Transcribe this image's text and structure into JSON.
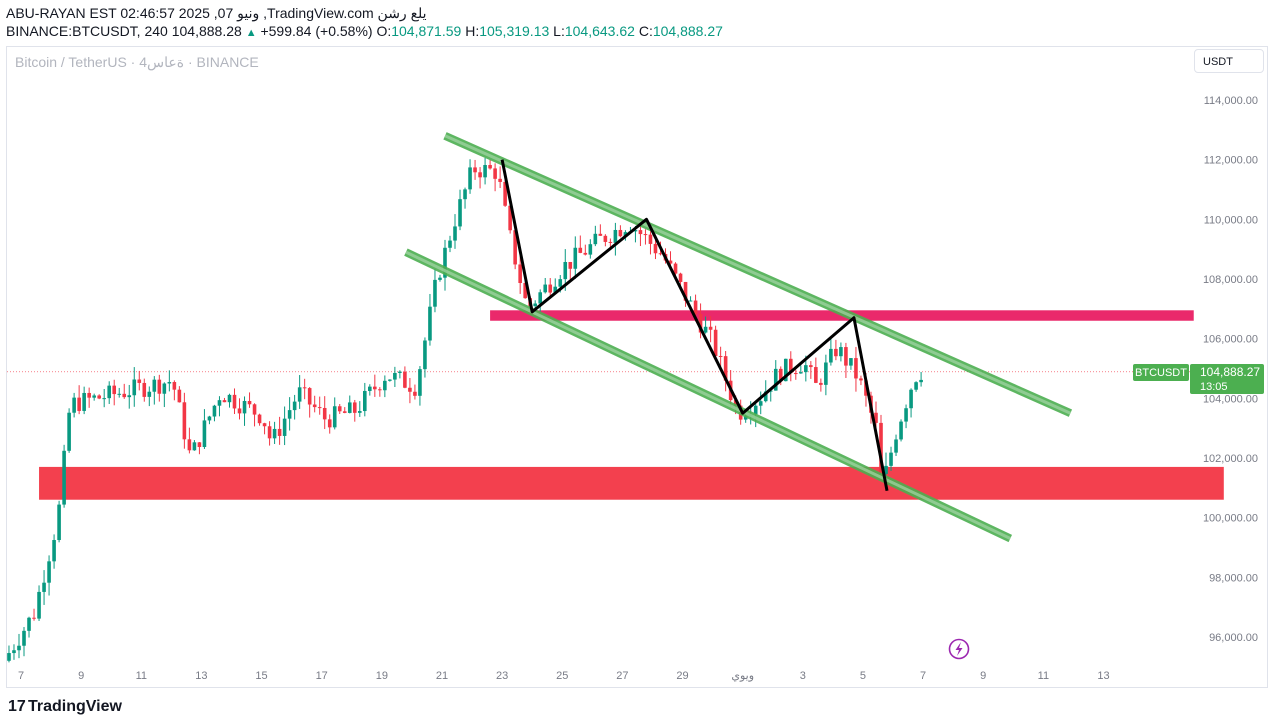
{
  "header": {
    "line1": "ABU-RAYAN EST 02:46:57 2025 ,07 ونيو ,TradingView.com يلع رشن",
    "symbol": "BINANCE:BTCUSDT, 240",
    "last": "104,888.28",
    "change": "+599.84 (+0.58%)",
    "o_label": "O:",
    "o": "104,871.59",
    "h_label": "H:",
    "h": "105,319.13",
    "l_label": "L:",
    "l": "104,643.62",
    "c_label": "C:",
    "c": "104,888.27"
  },
  "watermark": "Bitcoin / TetherUS · 4ةعاس · BINANCE",
  "currency_button": "USDT",
  "logo": "TradingView",
  "price_tag": {
    "symbol": "BTCUSDT",
    "price": "104,888.27",
    "countdown": "13:05"
  },
  "colors": {
    "up": "#089981",
    "down": "#f23645",
    "channel": "#4caf50",
    "zone": "#f23645",
    "zone_upper": "#e91e63",
    "accent": "#4caf50"
  },
  "chart_data": {
    "type": "candlestick",
    "ylim": [
      95000,
      115300
    ],
    "y_ticks": [
      96000,
      98000,
      100000,
      102000,
      104000,
      106000,
      108000,
      110000,
      112000,
      114000
    ],
    "y_tick_labels": [
      "96,000.00",
      "98,000.00",
      "100,000.00",
      "102,000.00",
      "104,000.00",
      "106,000.00",
      "108,000.00",
      "110,000.00",
      "112,000.00",
      "114,000.00"
    ],
    "x_ticks": [
      {
        "label": "7",
        "day": 7
      },
      {
        "label": "9",
        "day": 9
      },
      {
        "label": "11",
        "day": 11
      },
      {
        "label": "13",
        "day": 13
      },
      {
        "label": "15",
        "day": 15
      },
      {
        "label": "17",
        "day": 17
      },
      {
        "label": "19",
        "day": 19
      },
      {
        "label": "21",
        "day": 21
      },
      {
        "label": "23",
        "day": 23
      },
      {
        "label": "25",
        "day": 25
      },
      {
        "label": "27",
        "day": 27
      },
      {
        "label": "29",
        "day": 29
      },
      {
        "label": "ويوي",
        "day": 31
      },
      {
        "label": "3",
        "day": 33
      },
      {
        "label": "5",
        "day": 35
      },
      {
        "label": "7",
        "day": 37
      },
      {
        "label": "9",
        "day": 39
      },
      {
        "label": "11",
        "day": 41
      },
      {
        "label": "13",
        "day": 43
      }
    ],
    "path_prices": [
      [
        6.6,
        95200
      ],
      [
        7.6,
        96800
      ],
      [
        8.4,
        100000
      ],
      [
        8.8,
        103800
      ],
      [
        10.5,
        104200
      ],
      [
        12.2,
        104600
      ],
      [
        12.8,
        102000
      ],
      [
        13.8,
        104200
      ],
      [
        15.2,
        103400
      ],
      [
        15.5,
        102500
      ],
      [
        16.4,
        104200
      ],
      [
        17.3,
        103300
      ],
      [
        18.3,
        103600
      ],
      [
        19.3,
        104800
      ],
      [
        20.3,
        104400
      ],
      [
        21.0,
        108000
      ],
      [
        21.6,
        110000
      ],
      [
        22.2,
        111700
      ],
      [
        23.0,
        111600
      ],
      [
        23.4,
        109500
      ],
      [
        24.0,
        107000
      ],
      [
        25.2,
        108400
      ],
      [
        26.4,
        109300
      ],
      [
        27.4,
        109900
      ],
      [
        28.5,
        108800
      ],
      [
        29.5,
        107000
      ],
      [
        30.2,
        105800
      ],
      [
        31.0,
        103500
      ],
      [
        31.7,
        104000
      ],
      [
        32.4,
        104900
      ],
      [
        33.2,
        105200
      ],
      [
        33.6,
        104400
      ],
      [
        34.3,
        105700
      ],
      [
        35.0,
        104700
      ],
      [
        35.6,
        103000
      ],
      [
        35.8,
        101000
      ],
      [
        36.3,
        103000
      ],
      [
        36.8,
        104500
      ],
      [
        37.0,
        104900
      ]
    ],
    "trend_lines": [
      {
        "name": "upper-channel",
        "x": [
          21.1,
          41.9
        ],
        "y": [
          112800,
          103500
        ]
      },
      {
        "name": "lower-channel",
        "x": [
          19.8,
          39.9
        ],
        "y": [
          108900,
          99300
        ]
      }
    ],
    "zigzag": {
      "x": [
        23.0,
        24.0,
        27.8,
        31.0,
        34.7,
        35.8
      ],
      "y": [
        112000,
        106900,
        110000,
        103500,
        106700,
        100900
      ]
    },
    "zones": [
      {
        "name": "resistance-zone",
        "x": [
          22.6,
          46.0
        ],
        "y": [
          106600,
          106950
        ]
      },
      {
        "name": "support-zone",
        "x": [
          7.6,
          47.0
        ],
        "y": [
          100600,
          101700
        ]
      }
    ],
    "last_price": 104888.27
  }
}
